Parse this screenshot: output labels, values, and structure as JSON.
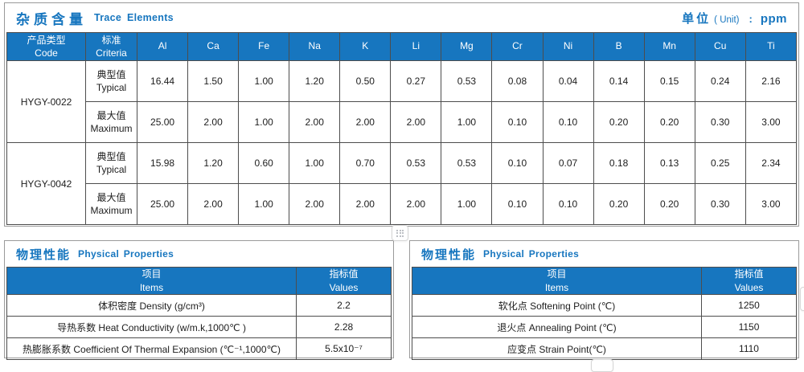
{
  "colors": {
    "accent_blue": "#1776bf",
    "header_text": "#ffffff",
    "cell_border": "#4d4d4d",
    "frame_border": "#9a9a9a"
  },
  "icons": {
    "drag_handle": "grid-of-dots"
  },
  "trace": {
    "title_cn": "杂质含量",
    "title_en": "Trace Elements",
    "unit_label_cn": "单位",
    "unit_label_en": "( Unit)",
    "unit_colon": ":",
    "unit_value": "ppm"
  },
  "trace_table": {
    "header": {
      "code_cn": "产品类型",
      "code_en": "Code",
      "criteria_cn": "标准",
      "criteria_en": "Criteria",
      "elements": [
        "Al",
        "Ca",
        "Fe",
        "Na",
        "K",
        "Li",
        "Mg",
        "Cr",
        "Ni",
        "B",
        "Mn",
        "Cu",
        "Ti"
      ]
    },
    "products": [
      {
        "code": "HYGY-0022",
        "rows": [
          {
            "label_cn": "典型值",
            "label_en": "Typical",
            "values": [
              "16.44",
              "1.50",
              "1.00",
              "1.20",
              "0.50",
              "0.27",
              "0.53",
              "0.08",
              "0.04",
              "0.14",
              "0.15",
              "0.24",
              "2.16"
            ]
          },
          {
            "label_cn": "最大值",
            "label_en": "Maximum",
            "values": [
              "25.00",
              "2.00",
              "1.00",
              "2.00",
              "2.00",
              "2.00",
              "1.00",
              "0.10",
              "0.10",
              "0.20",
              "0.20",
              "0.30",
              "3.00"
            ]
          }
        ]
      },
      {
        "code": "HYGY-0042",
        "rows": [
          {
            "label_cn": "典型值",
            "label_en": "Typical",
            "values": [
              "15.98",
              "1.20",
              "0.60",
              "1.00",
              "0.70",
              "0.53",
              "0.53",
              "0.10",
              "0.07",
              "0.18",
              "0.13",
              "0.25",
              "2.34"
            ]
          },
          {
            "label_cn": "最大值",
            "label_en": "Maximum",
            "values": [
              "25.00",
              "2.00",
              "1.00",
              "2.00",
              "2.00",
              "2.00",
              "1.00",
              "0.10",
              "0.10",
              "0.20",
              "0.20",
              "0.30",
              "3.00"
            ]
          }
        ]
      }
    ]
  },
  "physical_left": {
    "title_cn": "物理性能",
    "title_en": "Physical Properties",
    "header": {
      "item_cn": "项目",
      "item_en": "Items",
      "value_cn": "指标值",
      "value_en": "Values"
    },
    "rows": [
      {
        "item": "体积密度 Density (g/cm³)",
        "value": "2.2"
      },
      {
        "item": "导热系数 Heat Conductivity (w/m.k,1000℃ )",
        "value": "2.28"
      },
      {
        "item": "热膨胀系数 Coefficient Of Thermal Expansion (℃⁻¹,1000℃)",
        "value": "5.5x10⁻⁷"
      }
    ]
  },
  "physical_right": {
    "title_cn": "物理性能",
    "title_en": "Physical Properties",
    "header": {
      "item_cn": "项目",
      "item_en": "Items",
      "value_cn": "指标值",
      "value_en": "Values"
    },
    "rows": [
      {
        "item": "软化点 Softening Point (℃)",
        "value": "1250"
      },
      {
        "item": "退火点 Annealing Point (℃)",
        "value": "1150"
      },
      {
        "item": "应变点 Strain Point(℃)",
        "value": "1110"
      }
    ]
  }
}
